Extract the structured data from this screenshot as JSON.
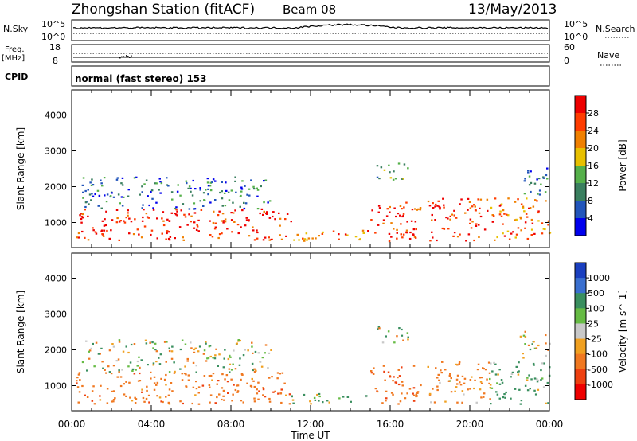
{
  "header": {
    "station": "Zhongshan Station (fitACF)",
    "beam": "Beam 08",
    "date": "13/May/2013"
  },
  "panels": {
    "nsky": {
      "label": "N.Sky",
      "left_ticks": [
        "10^5",
        "10^0"
      ],
      "right_ticks": [
        "10^5",
        "10^0"
      ],
      "right_label": "N.Search"
    },
    "freq": {
      "label_line1": "Freq.",
      "label_line2": "[MHz]",
      "left_ticks": [
        "18",
        "8"
      ],
      "right_ticks": [
        "60",
        "0"
      ],
      "right_label": "Nave"
    },
    "cpid": {
      "label": "CPID",
      "text": "normal (fast stereo) 153"
    }
  },
  "chart_data": [
    {
      "type": "heatmap",
      "parameter": "Power",
      "ylabel": "Slant Range [km]",
      "xlabel": "",
      "y_ticks": [
        1000,
        2000,
        3000,
        4000
      ],
      "ylim": [
        300,
        4700
      ],
      "xlim": [
        0,
        24
      ],
      "colorbar": {
        "title": "Power [dB]",
        "ticks": [
          "4",
          "8",
          "12",
          "16",
          "20",
          "24",
          "28"
        ],
        "colors": [
          "#0000ee",
          "#2255bb",
          "#3a7f5f",
          "#55b04a",
          "#e8c000",
          "#f08000",
          "#ff3c00",
          "#ee0000"
        ]
      },
      "echo_regions": [
        {
          "t_start": 0.2,
          "t_end": 11.0,
          "range_lo": 500,
          "range_hi": 1400,
          "value": 28
        },
        {
          "t_start": 0.5,
          "t_end": 10.0,
          "range_lo": 1400,
          "range_hi": 2300,
          "value": 8
        },
        {
          "t_start": 11.0,
          "t_end": 15.0,
          "range_lo": 500,
          "range_hi": 800,
          "value": 24
        },
        {
          "t_start": 15.0,
          "t_end": 17.5,
          "range_lo": 500,
          "range_hi": 1600,
          "value": 28
        },
        {
          "t_start": 15.3,
          "t_end": 17.0,
          "range_lo": 2200,
          "range_hi": 2700,
          "value": 12
        },
        {
          "t_start": 17.8,
          "t_end": 21.0,
          "range_lo": 500,
          "range_hi": 1700,
          "value": 28
        },
        {
          "t_start": 21.0,
          "t_end": 24.0,
          "range_lo": 500,
          "range_hi": 1700,
          "value": 24
        },
        {
          "t_start": 22.5,
          "t_end": 24.0,
          "range_lo": 1800,
          "range_hi": 2600,
          "value": 8
        }
      ]
    },
    {
      "type": "heatmap",
      "parameter": "Velocity",
      "ylabel": "Slant Range [km]",
      "xlabel": "Time UT",
      "y_ticks": [
        1000,
        2000,
        3000,
        4000
      ],
      "ylim": [
        300,
        4700
      ],
      "xlim": [
        0,
        24
      ],
      "x_ticks": [
        "00:00",
        "04:00",
        "08:00",
        "12:00",
        "16:00",
        "20:00",
        "00:00"
      ],
      "colorbar": {
        "title": "Velocity [m s^-1]",
        "ticks": [
          "1000",
          "500",
          "100",
          "25",
          "-25",
          "-100",
          "-500",
          "-1000"
        ],
        "colors": [
          "#1a3fbf",
          "#3a6fcf",
          "#3a8f5f",
          "#66bb44",
          "#c8c8c8",
          "#f0a020",
          "#f07820",
          "#ee4010",
          "#ee0000"
        ]
      },
      "echo_regions": [
        {
          "t_start": 0.2,
          "t_end": 11.0,
          "range_lo": 500,
          "range_hi": 1400,
          "value": -300
        },
        {
          "t_start": 0.5,
          "t_end": 10.0,
          "range_lo": 1400,
          "range_hi": 2300,
          "value": 0
        },
        {
          "t_start": 11.0,
          "t_end": 15.0,
          "range_lo": 500,
          "range_hi": 800,
          "value": 150
        },
        {
          "t_start": 15.0,
          "t_end": 17.5,
          "range_lo": 500,
          "range_hi": 1600,
          "value": -400
        },
        {
          "t_start": 15.3,
          "t_end": 17.0,
          "range_lo": 2200,
          "range_hi": 2700,
          "value": 0
        },
        {
          "t_start": 17.8,
          "t_end": 21.0,
          "range_lo": 500,
          "range_hi": 1700,
          "value": -200
        },
        {
          "t_start": 21.0,
          "t_end": 24.0,
          "range_lo": 500,
          "range_hi": 1700,
          "value": 200
        },
        {
          "t_start": 22.5,
          "t_end": 24.0,
          "range_lo": 1800,
          "range_hi": 2600,
          "value": 0
        }
      ]
    }
  ]
}
